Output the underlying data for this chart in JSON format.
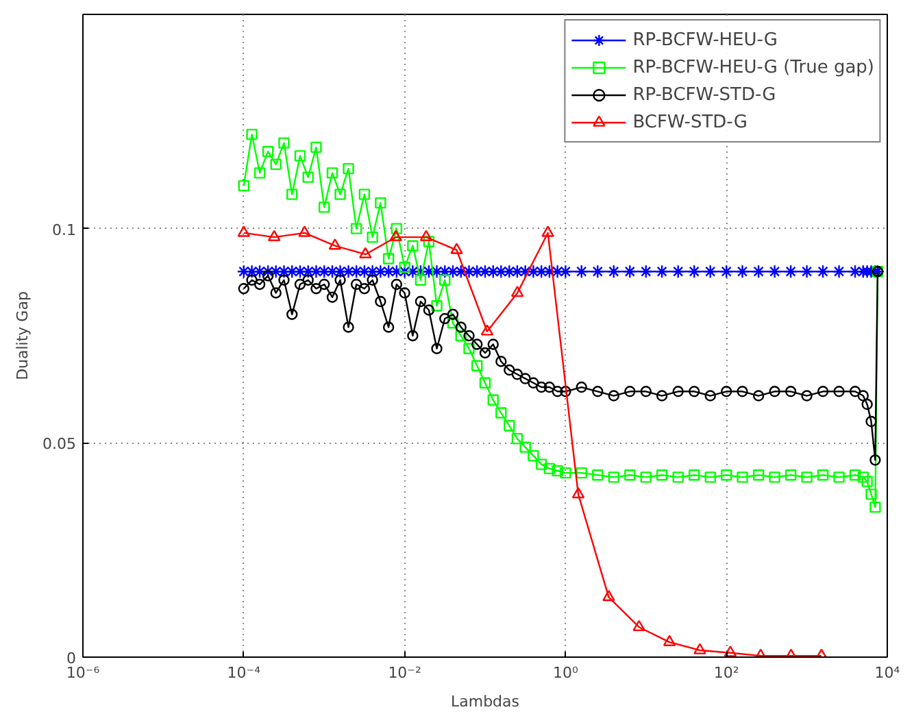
{
  "chart_data": {
    "type": "line",
    "xlabel": "Lambdas",
    "ylabel": "Duality Gap",
    "log": "x",
    "grid": true,
    "legend": "top right",
    "line_style": "solid",
    "xlim": [
      1e-06,
      10000.0
    ],
    "ylim": [
      0,
      0.15
    ],
    "xticks": [
      {
        "value": 1e-06,
        "label": "10⁻⁶"
      },
      {
        "value": 0.0001,
        "label": "10⁻⁴"
      },
      {
        "value": 0.01,
        "label": "10⁻²"
      },
      {
        "value": 1,
        "label": "10⁰"
      },
      {
        "value": 100,
        "label": "10²"
      },
      {
        "value": 10000,
        "label": "10⁴"
      }
    ],
    "yticks": [
      0,
      0.05,
      {
        "value": 0.1,
        "label": "0.1"
      }
    ],
    "x": [
      0.0001,
      0.000126,
      0.000158,
      0.0002,
      0.000251,
      0.000316,
      0.000398,
      0.000501,
      0.000631,
      0.000794,
      0.001,
      0.00126,
      0.00158,
      0.002,
      0.00251,
      0.00316,
      0.00398,
      0.00501,
      0.00631,
      0.00794,
      0.01,
      0.0126,
      0.0158,
      0.02,
      0.0251,
      0.0316,
      0.0398,
      0.0501,
      0.0631,
      0.0794,
      0.1,
      0.126,
      0.158,
      0.2,
      0.251,
      0.316,
      0.398,
      0.501,
      0.631,
      0.794,
      1,
      1.58,
      2.51,
      3.98,
      6.31,
      10,
      15.8,
      25.1,
      39.8,
      63.1,
      100,
      158,
      251,
      398,
      631,
      1000,
      1585,
      2512,
      3981,
      5012,
      5623,
      6310,
      7079,
      7586
    ],
    "series": [
      {
        "name": "RP-BCFW-HEU-G",
        "color": "#0000ff",
        "marker": "cross",
        "values": [
          0.09,
          0.09,
          0.09,
          0.09,
          0.09,
          0.09,
          0.09,
          0.09,
          0.09,
          0.09,
          0.09,
          0.09,
          0.09,
          0.09,
          0.09,
          0.09,
          0.09,
          0.09,
          0.09,
          0.09,
          0.09,
          0.09,
          0.09,
          0.09,
          0.09,
          0.09,
          0.09,
          0.09,
          0.09,
          0.09,
          0.09,
          0.09,
          0.09,
          0.09,
          0.09,
          0.09,
          0.09,
          0.09,
          0.09,
          0.09,
          0.09,
          0.09,
          0.09,
          0.09,
          0.09,
          0.09,
          0.09,
          0.09,
          0.09,
          0.09,
          0.09,
          0.09,
          0.09,
          0.09,
          0.09,
          0.09,
          0.09,
          0.09,
          0.09,
          0.09,
          0.09,
          0.09,
          0.09,
          0.09
        ]
      },
      {
        "name": "RP-BCFW-HEU-G (True gap)",
        "color": "#00ff00",
        "marker": "square",
        "values": [
          0.11,
          0.122,
          0.113,
          0.118,
          0.115,
          0.12,
          0.108,
          0.117,
          0.112,
          0.119,
          0.105,
          0.113,
          0.108,
          0.114,
          0.1,
          0.108,
          0.098,
          0.106,
          0.093,
          0.1,
          0.091,
          0.096,
          0.088,
          0.097,
          0.082,
          0.088,
          0.078,
          0.075,
          0.072,
          0.068,
          0.064,
          0.06,
          0.057,
          0.054,
          0.051,
          0.049,
          0.047,
          0.045,
          0.044,
          0.0435,
          0.043,
          0.043,
          0.0425,
          0.042,
          0.0425,
          0.042,
          0.0425,
          0.042,
          0.0425,
          0.042,
          0.0425,
          0.042,
          0.0425,
          0.042,
          0.0425,
          0.042,
          0.0425,
          0.042,
          0.0425,
          0.042,
          0.041,
          0.038,
          0.035,
          0.09
        ]
      },
      {
        "name": "RP-BCFW-STD-G",
        "color": "#000000",
        "marker": "circle",
        "values": [
          0.086,
          0.088,
          0.087,
          0.089,
          0.085,
          0.088,
          0.08,
          0.087,
          0.088,
          0.086,
          0.087,
          0.084,
          0.088,
          0.077,
          0.087,
          0.086,
          0.088,
          0.083,
          0.077,
          0.087,
          0.085,
          0.075,
          0.083,
          0.081,
          0.072,
          0.079,
          0.08,
          0.077,
          0.075,
          0.073,
          0.071,
          0.073,
          0.069,
          0.067,
          0.066,
          0.065,
          0.064,
          0.063,
          0.063,
          0.062,
          0.062,
          0.063,
          0.062,
          0.061,
          0.062,
          0.062,
          0.061,
          0.062,
          0.062,
          0.061,
          0.062,
          0.062,
          0.061,
          0.062,
          0.062,
          0.061,
          0.062,
          0.062,
          0.062,
          0.061,
          0.059,
          0.055,
          0.046,
          0.09
        ]
      },
      {
        "name": "BCFW-STD-G",
        "color": "#ff0000",
        "marker": "triangle",
        "x": [
          0.0001,
          0.000239,
          0.00057,
          0.00136,
          0.00325,
          0.00776,
          0.0185,
          0.0443,
          0.106,
          0.252,
          0.603,
          1.44,
          3.44,
          8.2,
          19.6,
          46.8,
          112,
          267,
          637,
          1520
        ],
        "values": [
          0.099,
          0.098,
          0.099,
          0.096,
          0.094,
          0.098,
          0.098,
          0.095,
          0.076,
          0.085,
          0.099,
          0.038,
          0.014,
          0.007,
          0.0035,
          0.0016,
          0.001,
          0.0003,
          0.0003,
          0.0003
        ]
      }
    ]
  }
}
